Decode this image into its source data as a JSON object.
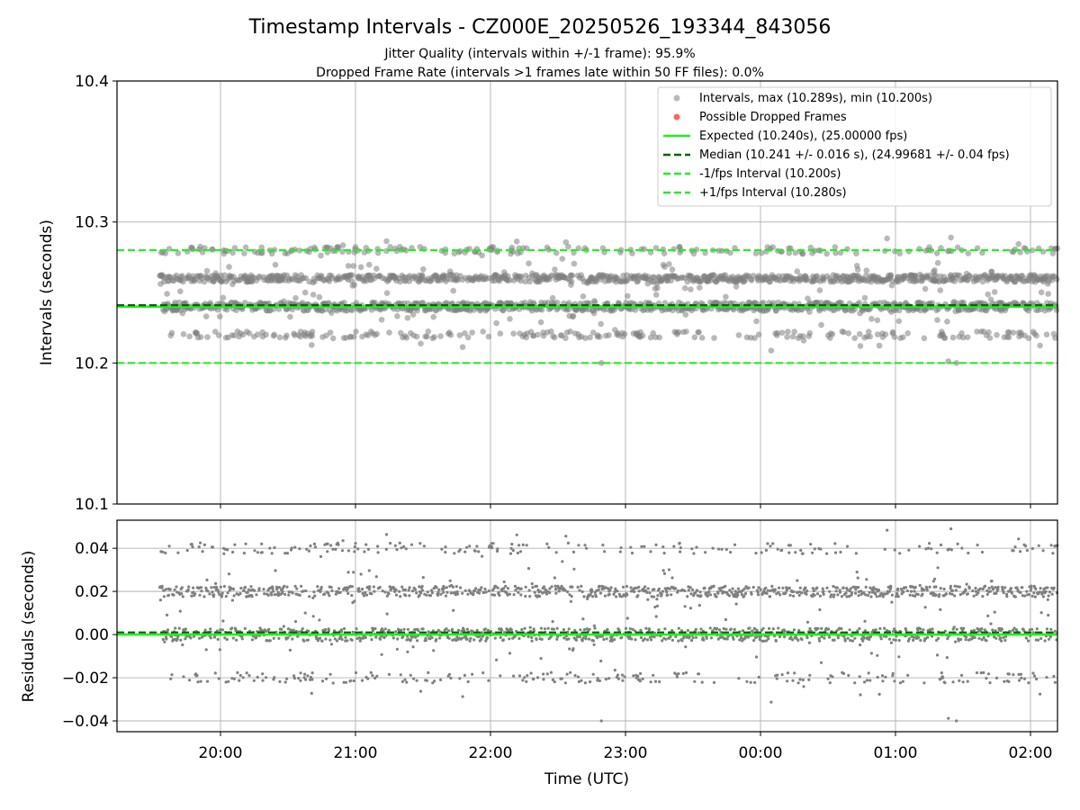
{
  "figure": {
    "title": "Timestamp Intervals - CZ000E_20250526_193344_843056",
    "subtitle_1": "Jitter Quality (intervals within +/-1 frame): 95.9%",
    "subtitle_2": "Dropped Frame Rate (intervals >1 frames late within 50 FF files): 0.0%"
  },
  "colors": {
    "points": "#808080",
    "dropped": "#ff6666",
    "expected": "#22ee22",
    "median": "#006400",
    "interval_bounds": "#22ee22",
    "grid": "#b0b0b0"
  },
  "chart_data": [
    {
      "type": "scatter",
      "panel": "intervals",
      "ylabel": "Intervals (seconds)",
      "xlabel": "",
      "ylim": [
        10.1,
        10.4
      ],
      "xlim": [
        "2025-05-26 19:14",
        "2025-05-27 02:12"
      ],
      "yticks": [
        "10.1",
        "10.2",
        "10.3",
        "10.4"
      ],
      "grid": true,
      "legend_position": "top-right",
      "legend": [
        "Intervals, max (10.289s), min (10.200s)",
        "Possible Dropped Frames",
        "Expected (10.240s), (25.00000 fps)",
        "Median (10.241 +/- 0.016 s), (24.99681 +/- 0.04 fps)",
        "-1/fps Interval (10.200s)",
        "+1/fps Interval (10.280s)"
      ],
      "reference_lines": {
        "expected": 10.24,
        "median": 10.241,
        "minus_one_frame": 10.2,
        "plus_one_frame": 10.28
      },
      "series": [
        {
          "name": "Intervals, max (10.289s), min (10.200s)",
          "x_range": [
            "2025-05-26 19:33",
            "2025-05-27 02:12"
          ],
          "count_approx": 2300,
          "levels": [
            10.2,
            10.22,
            10.24,
            10.26,
            10.28
          ],
          "level_shares": [
            0.003,
            0.11,
            0.42,
            0.38,
            0.087
          ],
          "max": 10.289,
          "min": 10.2
        },
        {
          "name": "Possible Dropped Frames",
          "values": []
        }
      ]
    },
    {
      "type": "scatter",
      "panel": "residuals",
      "ylabel": "Residuals (seconds)",
      "xlabel": "Time (UTC)",
      "ylim": [
        -0.045,
        0.053
      ],
      "yticks": [
        "0.04",
        "0.02",
        "0.00",
        "−0.02",
        "−0.04"
      ],
      "xticks": [
        "20:00",
        "21:00",
        "22:00",
        "23:00",
        "00:00",
        "01:00",
        "02:00"
      ],
      "grid": true,
      "reference_lines": {
        "zero": 0.0,
        "median_offset": 0.001
      },
      "series": [
        {
          "name": "Residuals",
          "levels": [
            -0.04,
            -0.02,
            0.0,
            0.02,
            0.04
          ],
          "level_shares": [
            0.003,
            0.11,
            0.42,
            0.38,
            0.087
          ]
        }
      ]
    }
  ]
}
